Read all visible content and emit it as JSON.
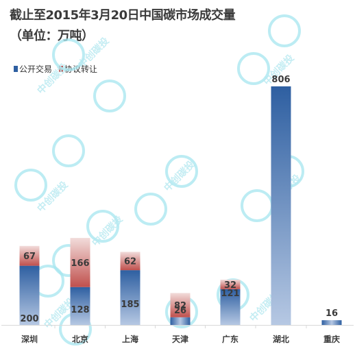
{
  "title": {
    "line1": "截止至2015年3月20日中国碳市场成交量",
    "line2": "（单位：万吨）"
  },
  "watermark": "中创碳投",
  "colors": {
    "open_dark": "#2e5fa1",
    "open_light": "#b6c8e3",
    "agree_dark": "#c0504d",
    "agree_light": "#f2dcdb"
  },
  "chart_data": {
    "type": "bar",
    "stacked": true,
    "categories": [
      "深圳",
      "北京",
      "上海",
      "天津",
      "广东",
      "湖北",
      "重庆"
    ],
    "series": [
      {
        "name": "公开交易",
        "values": [
          200,
          128,
          185,
          26,
          121,
          806,
          16
        ]
      },
      {
        "name": "协议转让",
        "values": [
          67,
          166,
          62,
          82,
          32,
          0,
          0
        ]
      }
    ],
    "ylim": [
      0,
      820
    ],
    "grid": false,
    "legend_position": "top-left"
  }
}
